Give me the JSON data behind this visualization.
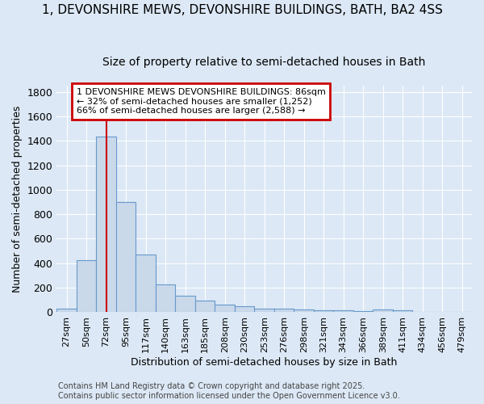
{
  "title_line1": "1, DEVONSHIRE MEWS, DEVONSHIRE BUILDINGS, BATH, BA2 4SS",
  "title_line2": "Size of property relative to semi-detached houses in Bath",
  "xlabel": "Distribution of semi-detached houses by size in Bath",
  "ylabel": "Number of semi-detached properties",
  "footer": "Contains HM Land Registry data © Crown copyright and database right 2025.\nContains public sector information licensed under the Open Government Licence v3.0.",
  "bin_labels": [
    "27sqm",
    "50sqm",
    "72sqm",
    "95sqm",
    "117sqm",
    "140sqm",
    "163sqm",
    "185sqm",
    "208sqm",
    "230sqm",
    "253sqm",
    "276sqm",
    "298sqm",
    "321sqm",
    "343sqm",
    "366sqm",
    "389sqm",
    "411sqm",
    "434sqm",
    "456sqm",
    "479sqm"
  ],
  "bar_heights": [
    30,
    425,
    1435,
    900,
    470,
    225,
    135,
    95,
    60,
    48,
    30,
    28,
    20,
    18,
    15,
    10,
    20,
    15,
    0,
    0,
    0
  ],
  "bar_color": "#c9d9ea",
  "bar_edge_color": "#6699cc",
  "annotation_title": "1 DEVONSHIRE MEWS DEVONSHIRE BUILDINGS: 86sqm",
  "annotation_line2": "← 32% of semi-detached houses are smaller (1,252)",
  "annotation_line3": "66% of semi-detached houses are larger (2,588) →",
  "annotation_box_color": "#ffffff",
  "annotation_box_edge": "#cc0000",
  "vline_x_index": 2,
  "vline_color": "#cc0000",
  "ylim": [
    0,
    1850
  ],
  "yticks": [
    0,
    200,
    400,
    600,
    800,
    1000,
    1200,
    1400,
    1600,
    1800
  ],
  "bg_color": "#dce8f5",
  "plot_bg_color": "#dce8f5",
  "grid_color": "#ffffff",
  "title1_fontsize": 11,
  "title2_fontsize": 10,
  "axis_label_fontsize": 9,
  "tick_fontsize": 8,
  "annotation_fontsize": 8,
  "footer_fontsize": 7
}
